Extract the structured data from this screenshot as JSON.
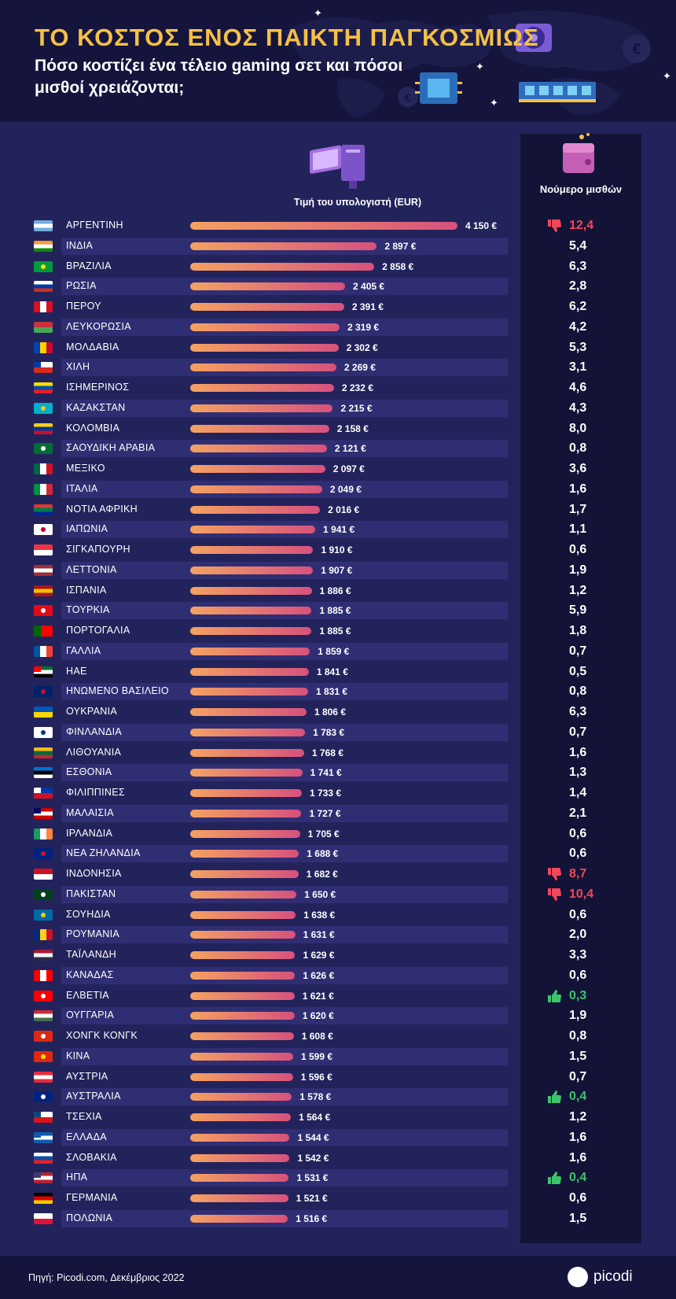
{
  "header": {
    "title": "ΤΟ ΚΟΣΤΟΣ ΕΝΟΣ ΠΑΙΚΤΗ ΠΑΓΚΟΣΜΙΩΣ",
    "subtitle": "Πόσο κοστίζει ένα τέλειο gaming σετ και πόσοι μισθοί χρειάζονται;"
  },
  "labels": {
    "price": "Τιμή του υπολογιστή (EUR)",
    "salaries": "Νούμερο μισθών"
  },
  "footer": {
    "source": "Πηγή: Picodi.com, Δεκέμβριος 2022",
    "brand": "picodi"
  },
  "colors": {
    "accent_title": "#f4c046",
    "bar_start": "#f4a261",
    "bar_end": "#d6517d",
    "bad": "#f0485a",
    "good": "#3dc46a"
  },
  "chart_data": {
    "type": "bar",
    "orientation": "horizontal",
    "xlabel": "Τιμή του υπολογιστή (EUR)",
    "categories": [
      "ΑΡΓΕΝΤΙΝΗ",
      "ΙΝΔΙΑ",
      "ΒΡΑΖΙΛΙΑ",
      "ΡΩΣΙΑ",
      "ΠΕΡΟΥ",
      "ΛΕΥΚΟΡΩΣΙΑ",
      "ΜΟΛΔΑΒΙΑ",
      "ΧΙΛΗ",
      "ΙΣΗΜΕΡΙΝΟΣ",
      "ΚΑΖΑΚΣΤΑΝ",
      "ΚΟΛΟΜΒΙΑ",
      "ΣΑΟΥΔΙΚΗ ΑΡΑΒΙΑ",
      "ΜΕΞΙΚΟ",
      "ΙΤΑΛΙΑ",
      "ΝΟΤΙΑ ΑΦΡΙΚΗ",
      "ΙΑΠΩΝΙΑ",
      "ΣΙΓΚΑΠΟΥΡΗ",
      "ΛΕΤΤΟΝΙΑ",
      "ΙΣΠΑΝΙΑ",
      "ΤΟΥΡΚΙΑ",
      "ΠΟΡΤΟΓΑΛΙΑ",
      "ΓΑΛΛΙΑ",
      "ΗΑΕ",
      "ΗΝΩΜΕΝΟ ΒΑΣΙΛΕΙΟ",
      "ΟΥΚΡΑΝΙΑ",
      "ΦΙΝΛΑΝΔΙΑ",
      "ΛΙΘΟΥΑΝΙΑ",
      "ΕΣΘΟΝΙΑ",
      "ΦΙΛΙΠΠΙΝΕΣ",
      "ΜΑΛΑΙΣΙΑ",
      "ΙΡΛΑΝΔΙΑ",
      "ΝΕΑ ΖΗΛΑΝΔΙΑ",
      "ΙΝΔΟΝΗΣΙΑ",
      "ΠΑΚΙΣΤΑΝ",
      "ΣΟΥΗΔΙΑ",
      "ΡΟΥΜΑΝΙΑ",
      "ΤΑΪΛΑΝΔΗ",
      "ΚΑΝΑΔΑΣ",
      "ΕΛΒΕΤΙΑ",
      "ΟΥΓΓΑΡΙΑ",
      "ΧΟΝΓΚ ΚΟΝΓΚ",
      "ΚΙΝΑ",
      "ΑΥΣΤΡΙΑ",
      "ΑΥΣΤΡΑΛΙΑ",
      "ΤΣΕΧΙΑ",
      "ΕΛΛΑΔΑ",
      "ΣΛΟΒΑΚΙΑ",
      "ΗΠΑ",
      "ΓΕΡΜΑΝΙΑ",
      "ΠΟΛΩΝΙΑ"
    ],
    "values": [
      4150,
      2897,
      2858,
      2405,
      2391,
      2319,
      2302,
      2269,
      2232,
      2215,
      2158,
      2121,
      2097,
      2049,
      2016,
      1941,
      1910,
      1907,
      1886,
      1885,
      1885,
      1859,
      1841,
      1831,
      1806,
      1783,
      1768,
      1741,
      1733,
      1727,
      1705,
      1688,
      1682,
      1650,
      1638,
      1631,
      1629,
      1626,
      1621,
      1620,
      1608,
      1599,
      1596,
      1578,
      1564,
      1544,
      1542,
      1531,
      1521,
      1516
    ],
    "value_labels": [
      "4 150 €",
      "2 897 €",
      "2 858 €",
      "2 405 €",
      "2 391 €",
      "2 319 €",
      "2 302 €",
      "2 269 €",
      "2 232 €",
      "2 215 €",
      "2 158 €",
      "2 121 €",
      "2 097 €",
      "2 049 €",
      "2 016 €",
      "1 941 €",
      "1 910 €",
      "1 907 €",
      "1 886 €",
      "1 885 €",
      "1 885 €",
      "1 859 €",
      "1 841 €",
      "1 831 €",
      "1 806 €",
      "1 783 €",
      "1 768 €",
      "1 741 €",
      "1 733 €",
      "1 727 €",
      "1 705 €",
      "1 688 €",
      "1 682 €",
      "1 650 €",
      "1 638 €",
      "1 631 €",
      "1 629 €",
      "1 626 €",
      "1 621 €",
      "1 620 €",
      "1 608 €",
      "1 599 €",
      "1 596 €",
      "1 578 €",
      "1 564 €",
      "1 544 €",
      "1 542 €",
      "1 531 €",
      "1 521 €",
      "1 516 €"
    ],
    "salaries": [
      "12,4",
      "5,4",
      "6,3",
      "2,8",
      "6,2",
      "4,2",
      "5,3",
      "3,1",
      "4,6",
      "4,3",
      "8,0",
      "0,8",
      "3,6",
      "1,6",
      "1,7",
      "1,1",
      "0,6",
      "1,9",
      "1,2",
      "5,9",
      "1,8",
      "0,7",
      "0,5",
      "0,8",
      "6,3",
      "0,7",
      "1,6",
      "1,3",
      "1,4",
      "2,1",
      "0,6",
      "0,6",
      "8,7",
      "10,4",
      "0,6",
      "2,0",
      "3,3",
      "0,6",
      "0,3",
      "1,9",
      "0,8",
      "1,5",
      "0,7",
      "0,4",
      "1,2",
      "1,6",
      "1,6",
      "0,4",
      "0,6",
      "1,5"
    ],
    "salary_status": [
      "bad",
      "",
      "",
      "",
      "",
      "",
      "",
      "",
      "",
      "",
      "",
      "",
      "",
      "",
      "",
      "",
      "",
      "",
      "",
      "",
      "",
      "",
      "",
      "",
      "",
      "",
      "",
      "",
      "",
      "",
      "",
      "",
      "bad",
      "bad",
      "",
      "",
      "",
      "",
      "good",
      "",
      "",
      "",
      "",
      "good",
      "",
      "",
      "",
      "good",
      "",
      ""
    ],
    "xlim": [
      0,
      4150
    ],
    "legend": "none",
    "grid": false
  },
  "flags": [
    {
      "type": "h",
      "colors": [
        "#74acdf",
        "#ffffff",
        "#74acdf"
      ]
    },
    {
      "type": "h",
      "colors": [
        "#ff9933",
        "#ffffff",
        "#138808"
      ]
    },
    {
      "type": "solid",
      "colors": [
        "#009c3b"
      ],
      "emblem": "#ffdf00"
    },
    {
      "type": "h",
      "colors": [
        "#ffffff",
        "#0039a6",
        "#d52b1e"
      ]
    },
    {
      "type": "v",
      "colors": [
        "#d91023",
        "#ffffff",
        "#d91023"
      ]
    },
    {
      "type": "h2",
      "colors": [
        "#c8313e",
        "#4aa657"
      ]
    },
    {
      "type": "v",
      "colors": [
        "#0046ae",
        "#ffd200",
        "#cc092f"
      ]
    },
    {
      "type": "h2",
      "colors": [
        "#ffffff",
        "#d52b1e"
      ],
      "canton": "#0039a6"
    },
    {
      "type": "h",
      "colors": [
        "#ffdd00",
        "#034ea2",
        "#ed1c24"
      ]
    },
    {
      "type": "solid",
      "colors": [
        "#00afca"
      ],
      "emblem": "#fec50c"
    },
    {
      "type": "h",
      "colors": [
        "#fcd116",
        "#003893",
        "#ce1126"
      ]
    },
    {
      "type": "solid",
      "colors": [
        "#006c35"
      ],
      "emblem": "#ffffff"
    },
    {
      "type": "v",
      "colors": [
        "#006847",
        "#ffffff",
        "#ce1126"
      ]
    },
    {
      "type": "v",
      "colors": [
        "#009246",
        "#ffffff",
        "#ce2b37"
      ]
    },
    {
      "type": "h",
      "colors": [
        "#de3831",
        "#007a4d",
        "#002395"
      ]
    },
    {
      "type": "solid",
      "colors": [
        "#ffffff"
      ],
      "emblem": "#bc002d"
    },
    {
      "type": "h2",
      "colors": [
        "#ef3340",
        "#ffffff"
      ]
    },
    {
      "type": "h",
      "colors": [
        "#9e3039",
        "#ffffff",
        "#9e3039"
      ]
    },
    {
      "type": "h",
      "colors": [
        "#aa151b",
        "#f1bf00",
        "#aa151b"
      ]
    },
    {
      "type": "solid",
      "colors": [
        "#e30a17"
      ],
      "emblem": "#ffffff"
    },
    {
      "type": "v2",
      "colors": [
        "#006600",
        "#ff0000"
      ]
    },
    {
      "type": "v",
      "colors": [
        "#0055a4",
        "#ffffff",
        "#ef4135"
      ]
    },
    {
      "type": "h",
      "colors": [
        "#00732f",
        "#ffffff",
        "#000000"
      ],
      "canton": "#ff0000"
    },
    {
      "type": "solid",
      "colors": [
        "#012169"
      ],
      "emblem": "#c8102e"
    },
    {
      "type": "h2",
      "colors": [
        "#0057b7",
        "#ffd700"
      ]
    },
    {
      "type": "solid",
      "colors": [
        "#ffffff"
      ],
      "emblem": "#003580"
    },
    {
      "type": "h",
      "colors": [
        "#fdb913",
        "#006a44",
        "#c1272d"
      ]
    },
    {
      "type": "h",
      "colors": [
        "#0072ce",
        "#000000",
        "#ffffff"
      ]
    },
    {
      "type": "h2",
      "colors": [
        "#0038a8",
        "#ce1126"
      ],
      "canton": "#ffffff"
    },
    {
      "type": "h",
      "colors": [
        "#cc0001",
        "#ffffff",
        "#cc0001"
      ],
      "canton": "#010066"
    },
    {
      "type": "v",
      "colors": [
        "#169b62",
        "#ffffff",
        "#ff883e"
      ]
    },
    {
      "type": "solid",
      "colors": [
        "#00247d"
      ],
      "emblem": "#cc142b"
    },
    {
      "type": "h2",
      "colors": [
        "#ce1126",
        "#ffffff"
      ]
    },
    {
      "type": "solid",
      "colors": [
        "#01411c"
      ],
      "emblem": "#ffffff"
    },
    {
      "type": "solid",
      "colors": [
        "#006aa7"
      ],
      "emblem": "#fecc00"
    },
    {
      "type": "v",
      "colors": [
        "#002b7f",
        "#fcd116",
        "#ce1126"
      ]
    },
    {
      "type": "h",
      "colors": [
        "#a51931",
        "#f4f5f8",
        "#2d2a4a"
      ]
    },
    {
      "type": "v",
      "colors": [
        "#ff0000",
        "#ffffff",
        "#ff0000"
      ]
    },
    {
      "type": "solid",
      "colors": [
        "#ff0000"
      ],
      "emblem": "#ffffff"
    },
    {
      "type": "h",
      "colors": [
        "#ce2939",
        "#ffffff",
        "#477050"
      ]
    },
    {
      "type": "solid",
      "colors": [
        "#de2910"
      ],
      "emblem": "#ffffff"
    },
    {
      "type": "solid",
      "colors": [
        "#de2910"
      ],
      "emblem": "#ffde00"
    },
    {
      "type": "h",
      "colors": [
        "#ed2939",
        "#ffffff",
        "#ed2939"
      ]
    },
    {
      "type": "solid",
      "colors": [
        "#00247d"
      ],
      "emblem": "#ffffff"
    },
    {
      "type": "h2",
      "colors": [
        "#ffffff",
        "#d7141a"
      ],
      "canton": "#11457e"
    },
    {
      "type": "h",
      "colors": [
        "#0d5eaf",
        "#ffffff",
        "#0d5eaf"
      ],
      "canton": "#0d5eaf"
    },
    {
      "type": "h",
      "colors": [
        "#ffffff",
        "#0b4ea2",
        "#ee1c25"
      ]
    },
    {
      "type": "h",
      "colors": [
        "#b22234",
        "#ffffff",
        "#b22234"
      ],
      "canton": "#3c3b6e"
    },
    {
      "type": "h",
      "colors": [
        "#000000",
        "#dd0000",
        "#ffce00"
      ]
    },
    {
      "type": "h2",
      "colors": [
        "#ffffff",
        "#dc143c"
      ]
    }
  ]
}
